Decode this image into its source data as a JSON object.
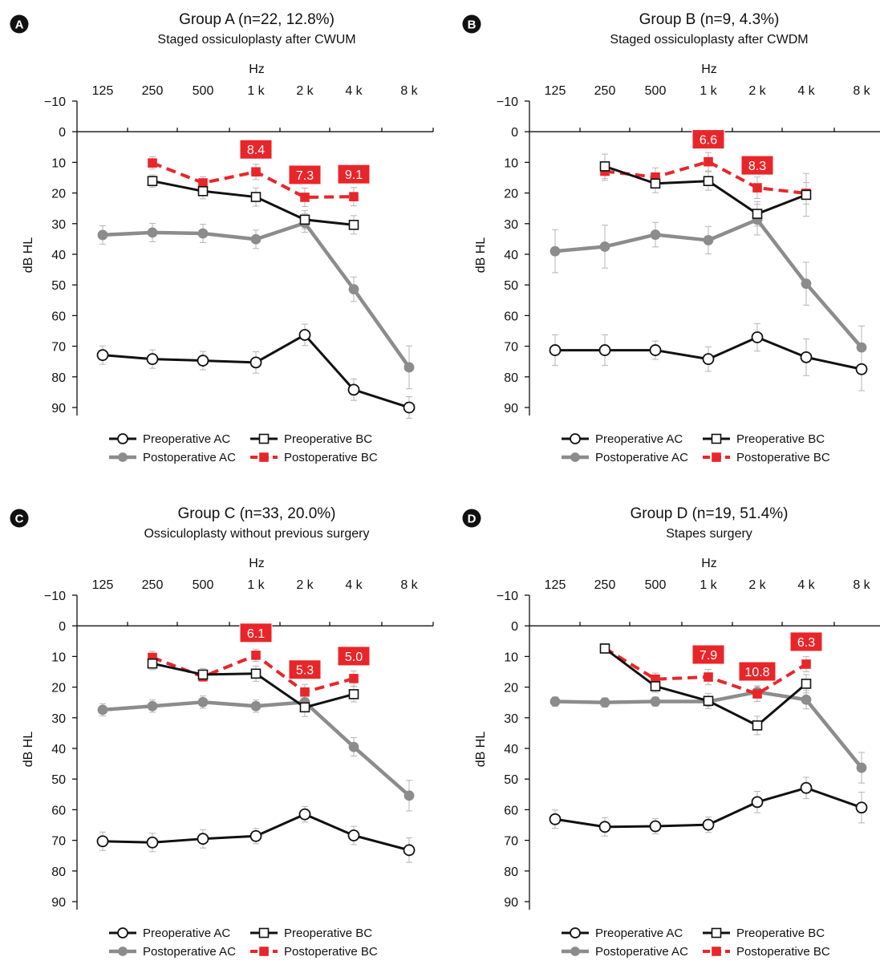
{
  "chart_data": [
    {
      "type": "line",
      "panel": "A",
      "title": "Group A (n=22, 12.8%)",
      "subtitle": "Staged ossiculoplasty after CWUM",
      "xlabel": "Hz",
      "ylabel": "dB HL",
      "x_ticks": [
        "125",
        "250",
        "500",
        "1 k",
        "2 k",
        "4 k",
        "8 k"
      ],
      "y_ticks": [
        "−10",
        "0",
        "10",
        "20",
        "30",
        "40",
        "50",
        "60",
        "70",
        "80",
        "90"
      ],
      "ylim": [
        -10,
        90
      ],
      "y_inverted": true,
      "series": [
        {
          "name": "Preoperative AC",
          "values": [
            72.9,
            74.2,
            74.7,
            75.3,
            66.3,
            84.2,
            90.0
          ],
          "errors": [
            3,
            3,
            3,
            3.5,
            3.5,
            3.5,
            3.5
          ]
        },
        {
          "name": "Preoperative BC",
          "values": [
            null,
            16.1,
            19.4,
            21.3,
            28.7,
            30.4,
            null
          ],
          "errors": [
            null,
            2,
            2.5,
            3,
            3,
            3,
            null
          ]
        },
        {
          "name": "Postoperative AC",
          "values": [
            33.7,
            32.9,
            33.2,
            35.1,
            29.8,
            51.4,
            76.9
          ],
          "errors": [
            3,
            3,
            3,
            3,
            3,
            4,
            7
          ]
        },
        {
          "name": "Postoperative BC",
          "values": [
            null,
            10.2,
            16.7,
            13.1,
            21.4,
            21.2,
            null
          ],
          "errors": [
            null,
            2,
            2,
            2.5,
            3,
            3,
            null
          ]
        }
      ],
      "annotations": [
        {
          "text": "8.4",
          "x": "1 k"
        },
        {
          "text": "7.3",
          "x": "2 k"
        },
        {
          "text": "9.1",
          "x": "4 k"
        }
      ]
    },
    {
      "type": "line",
      "panel": "B",
      "title": "Group B (n=9, 4.3%)",
      "subtitle": "Staged ossiculoplasty after CWDM",
      "xlabel": "Hz",
      "ylabel": "dB HL",
      "x_ticks": [
        "125",
        "250",
        "500",
        "1 k",
        "2 k",
        "4 k",
        "8 k"
      ],
      "y_ticks": [
        "−10",
        "0",
        "10",
        "20",
        "30",
        "40",
        "50",
        "60",
        "70",
        "80",
        "90"
      ],
      "ylim": [
        -10,
        90
      ],
      "y_inverted": true,
      "series": [
        {
          "name": "Preoperative AC",
          "values": [
            71.3,
            71.3,
            71.3,
            74.2,
            67.1,
            73.6,
            77.5
          ],
          "errors": [
            5,
            5,
            3,
            4,
            4.5,
            6,
            7
          ]
        },
        {
          "name": "Preoperative BC",
          "values": [
            null,
            11.3,
            16.9,
            16.1,
            26.8,
            20.6,
            null
          ],
          "errors": [
            null,
            4,
            3,
            3,
            4,
            7,
            null
          ]
        },
        {
          "name": "Postoperative AC",
          "values": [
            39.0,
            37.5,
            33.6,
            35.4,
            28.7,
            49.6,
            70.4
          ],
          "errors": [
            7,
            7,
            4,
            4.5,
            5,
            7,
            7
          ]
        },
        {
          "name": "Postoperative BC",
          "values": [
            null,
            12.9,
            14.8,
            9.8,
            18.3,
            20.1,
            null
          ],
          "errors": [
            null,
            3,
            3,
            3,
            3.5,
            3.5,
            null
          ]
        }
      ],
      "annotations": [
        {
          "text": "6.6",
          "x": "1 k"
        },
        {
          "text": "8.3",
          "x": "2 k"
        }
      ]
    },
    {
      "type": "line",
      "panel": "C",
      "title": "Group C (n=33, 20.0%)",
      "subtitle": "Ossiculoplasty without previous surgery",
      "xlabel": "Hz",
      "ylabel": "dB HL",
      "x_ticks": [
        "125",
        "250",
        "500",
        "1 k",
        "2 k",
        "4 k",
        "8 k"
      ],
      "y_ticks": [
        "−10",
        "0",
        "10",
        "20",
        "30",
        "40",
        "50",
        "60",
        "70",
        "80",
        "90"
      ],
      "ylim": [
        -10,
        90
      ],
      "y_inverted": true,
      "series": [
        {
          "name": "Preoperative AC",
          "values": [
            70.3,
            70.7,
            69.5,
            68.6,
            61.5,
            68.4,
            73.2
          ],
          "errors": [
            3,
            3,
            3,
            2.5,
            2.5,
            3,
            4
          ]
        },
        {
          "name": "Preoperative BC",
          "values": [
            null,
            12.3,
            15.9,
            15.6,
            26.6,
            22.3,
            null
          ],
          "errors": [
            null,
            2,
            2,
            2.5,
            3,
            2.5,
            null
          ]
        },
        {
          "name": "Postoperative AC",
          "values": [
            27.4,
            26.2,
            24.9,
            26.2,
            24.9,
            39.5,
            55.4
          ],
          "errors": [
            2,
            2,
            2,
            2,
            2.5,
            3,
            5
          ]
        },
        {
          "name": "Postoperative BC",
          "values": [
            null,
            10.3,
            16.6,
            9.6,
            21.6,
            17.2,
            null
          ],
          "errors": [
            null,
            2,
            1.5,
            2,
            2.5,
            2.5,
            null
          ]
        }
      ],
      "annotations": [
        {
          "text": "6.1",
          "x": "1 k"
        },
        {
          "text": "5.3",
          "x": "2 k"
        },
        {
          "text": "5.0",
          "x": "4 k"
        }
      ]
    },
    {
      "type": "line",
      "panel": "D",
      "title": "Group D (n=19, 51.4%)",
      "subtitle": "Stapes surgery",
      "xlabel": "Hz",
      "ylabel": "dB HL",
      "x_ticks": [
        "125",
        "250",
        "500",
        "1 k",
        "2 k",
        "4 k",
        "8 k"
      ],
      "y_ticks": [
        "−10",
        "0",
        "10",
        "20",
        "30",
        "40",
        "50",
        "60",
        "70",
        "80",
        "90"
      ],
      "ylim": [
        -10,
        90
      ],
      "y_inverted": true,
      "series": [
        {
          "name": "Preoperative AC",
          "values": [
            63.1,
            65.6,
            65.4,
            64.9,
            57.5,
            52.9,
            59.3
          ],
          "errors": [
            3,
            3,
            2.5,
            2.5,
            3.5,
            3.5,
            5
          ]
        },
        {
          "name": "Preoperative BC",
          "values": [
            null,
            7.4,
            19.7,
            24.5,
            32.5,
            18.9,
            null
          ],
          "errors": [
            null,
            1.5,
            2,
            2.5,
            3,
            3,
            null
          ]
        },
        {
          "name": "Postoperative AC",
          "values": [
            24.7,
            25.0,
            24.7,
            24.7,
            21.6,
            24.1,
            46.3
          ],
          "errors": [
            1.5,
            1.5,
            1.5,
            1.5,
            2,
            3,
            5
          ]
        },
        {
          "name": "Postoperative BC",
          "values": [
            null,
            7.3,
            17.4,
            16.7,
            22.2,
            12.5,
            null
          ],
          "errors": [
            null,
            1.5,
            2,
            2.5,
            2.5,
            2.5,
            null
          ]
        }
      ],
      "annotations": [
        {
          "text": "7.9",
          "x": "1 k"
        },
        {
          "text": "10.8",
          "x": "2 k"
        },
        {
          "text": "6.3",
          "x": "4 k"
        }
      ]
    }
  ],
  "legend": {
    "pre_ac": "Preoperative AC",
    "pre_bc": "Preoperative BC",
    "post_ac": "Postoperative AC",
    "post_bc": "Postoperative BC"
  },
  "colors": {
    "pre_ac": "#111111",
    "pre_bc": "#111111",
    "post_ac": "#8c8c8c",
    "post_bc": "#e8262a",
    "annotation_box": "#e8262a",
    "panel_badge": "#111111"
  }
}
